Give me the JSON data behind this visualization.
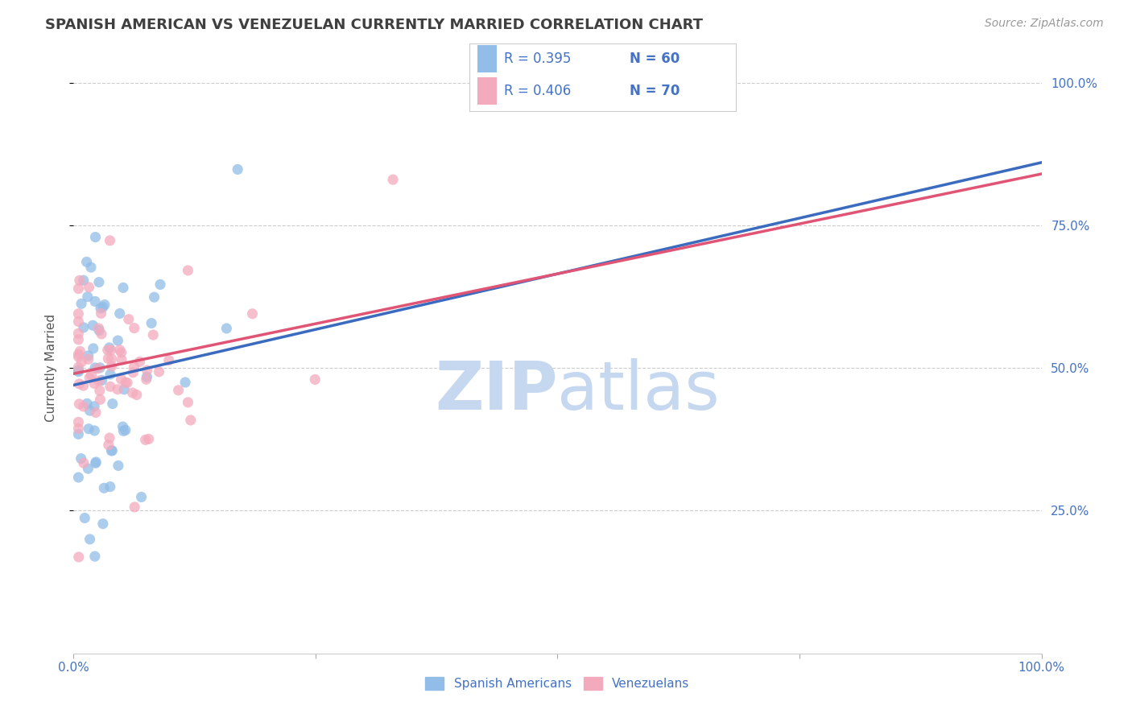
{
  "title": "SPANISH AMERICAN VS VENEZUELAN CURRENTLY MARRIED CORRELATION CHART",
  "source": "Source: ZipAtlas.com",
  "ylabel": "Currently Married",
  "x_min": 0.0,
  "x_max": 1.0,
  "y_min": 0.0,
  "y_max": 1.0,
  "x_ticklabels": [
    "0.0%",
    "100.0%"
  ],
  "y_ticklabels_right": [
    "25.0%",
    "50.0%",
    "75.0%",
    "100.0%"
  ],
  "y_ticks_right": [
    0.25,
    0.5,
    0.75,
    1.0
  ],
  "legend_labels": [
    "Spanish Americans",
    "Venezuelans"
  ],
  "legend_r": [
    0.395,
    0.406
  ],
  "legend_n": [
    60,
    70
  ],
  "blue_color": "#92BDE8",
  "pink_color": "#F4AABD",
  "blue_line_color": "#3A6BBF",
  "pink_line_color": "#E05575",
  "legend_text_color": "#4472C4",
  "title_color": "#404040",
  "source_color": "#999999",
  "watermark_zip_color": "#C5D8F0",
  "watermark_atlas_color": "#C5D8F0",
  "grid_color": "#CCCCCC",
  "background_color": "#FFFFFF",
  "blue_line_x0": 0.0,
  "blue_line_y0": 0.47,
  "blue_line_x1": 1.0,
  "blue_line_y1": 0.86,
  "pink_line_x0": 0.0,
  "pink_line_y0": 0.49,
  "pink_line_x1": 1.0,
  "pink_line_y1": 0.84
}
